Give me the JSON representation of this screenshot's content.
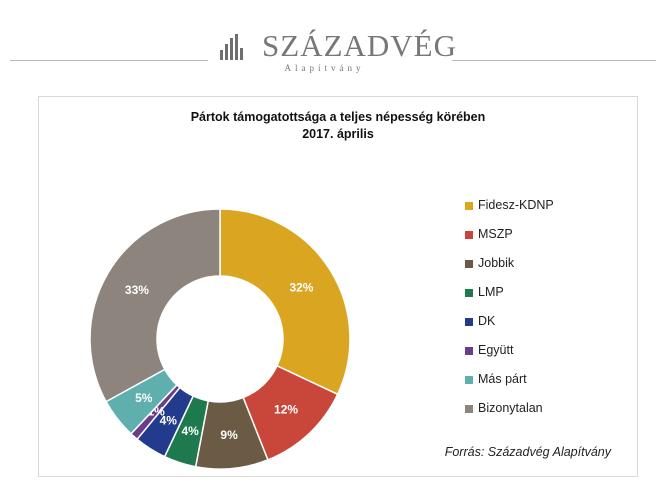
{
  "logo": {
    "name": "SZÁZADVÉG",
    "subtitle": "Alapítvány",
    "color": "#6e6e6e"
  },
  "chart_data": {
    "type": "pie",
    "title_line1": "Pártok támogatottsága a teljes népesség körében",
    "title_line2": "2017. április",
    "categories": [
      "Fidesz-KDNP",
      "MSZP",
      "Jobbik",
      "LMP",
      "DK",
      "Együtt",
      "Más párt",
      "Bizonytalan"
    ],
    "values": [
      32,
      12,
      9,
      4,
      4,
      1,
      5,
      33
    ],
    "labels": [
      "32%",
      "12%",
      "9%",
      "4%",
      "4%",
      "1%",
      "5%",
      "33%"
    ],
    "colors": [
      "#DAA520",
      "#C9473A",
      "#6B5B45",
      "#1E7A4E",
      "#233B8C",
      "#6A3D8A",
      "#5FAFAF",
      "#8C847D"
    ],
    "donut": true,
    "legend_position": "right"
  },
  "source_text": "Forrás: Századvég Alapítvány"
}
